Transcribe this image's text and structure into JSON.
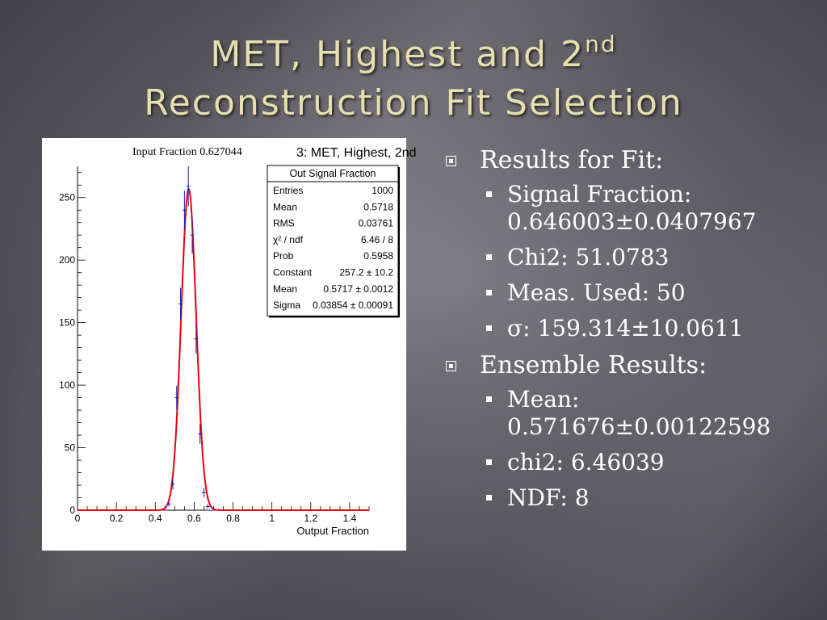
{
  "slide": {
    "title_line1": "MET, Highest and 2",
    "title_line1_sup": "nd",
    "title_line2": "Reconstruction Fit Selection"
  },
  "bullets": {
    "fit_header": "Results for Fit:",
    "fit_items": [
      "Signal Fraction:",
      "0.646003±0.0407967",
      "Chi2: 51.0783",
      "Meas. Used: 50",
      "σ: 159.314±10.0611"
    ],
    "ensemble_header": "Ensemble Results:",
    "ensemble_items": [
      "Mean:",
      "0.571676±0.00122598",
      "chi2: 6.46039",
      "NDF: 8"
    ]
  },
  "chart_data": {
    "type": "histogram",
    "annotation": "Input Fraction 0.627044",
    "title": "3: MET, Highest, 2nd",
    "xlabel": "Output Fraction",
    "ylabel": "",
    "xlim": [
      0,
      1.5
    ],
    "ylim": [
      0,
      275
    ],
    "x_ticks": [
      "0",
      "0.2",
      "0.4",
      "0.6",
      "0.8",
      "1",
      "1.2",
      "1.4"
    ],
    "y_ticks": [
      "0",
      "50",
      "100",
      "150",
      "200",
      "250"
    ],
    "bin_width": 0.02,
    "bins": [
      {
        "x": 0.47,
        "y": 5,
        "err": 2
      },
      {
        "x": 0.49,
        "y": 21,
        "err": 4.5
      },
      {
        "x": 0.51,
        "y": 90,
        "err": 9.5
      },
      {
        "x": 0.53,
        "y": 165,
        "err": 12.8
      },
      {
        "x": 0.55,
        "y": 240,
        "err": 15.5
      },
      {
        "x": 0.57,
        "y": 259,
        "err": 16
      },
      {
        "x": 0.59,
        "y": 220,
        "err": 14.8
      },
      {
        "x": 0.61,
        "y": 137,
        "err": 11.7
      },
      {
        "x": 0.63,
        "y": 61,
        "err": 7.8
      },
      {
        "x": 0.65,
        "y": 14,
        "err": 3.7
      },
      {
        "x": 0.67,
        "y": 3,
        "err": 1.7
      }
    ],
    "fit": {
      "type": "gaussian",
      "constant": 257.2,
      "mean": 0.5717,
      "sigma": 0.03854,
      "color": "#e8000b"
    },
    "stats_box": {
      "title": "Out Signal Fraction",
      "rows": [
        {
          "label": "Entries",
          "value": "1000"
        },
        {
          "label": "Mean",
          "value": "0.5718"
        },
        {
          "label": "RMS",
          "value": "0.03761"
        },
        {
          "label": "χ² / ndf",
          "value": "6.46 / 8"
        },
        {
          "label": "Prob",
          "value": "0.5958"
        },
        {
          "label": "Constant",
          "value": "257.2 ± 10.2"
        },
        {
          "label": "Mean",
          "value": "0.5717 ± 0.0012"
        },
        {
          "label": "Sigma",
          "value": "0.03854 ± 0.00091"
        }
      ]
    },
    "colors": {
      "data": "#1a1aa8",
      "fit": "#e8000b",
      "axis": "#000000"
    }
  }
}
